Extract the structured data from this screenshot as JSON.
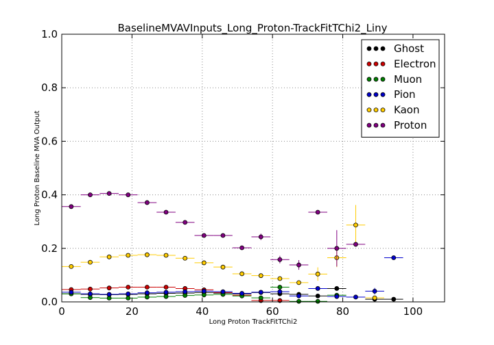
{
  "chart_data": {
    "type": "scatter",
    "title": "BaselineMVAVInputs_Long_Proton-TrackFitTChi2_Liny",
    "xlabel": "Long Proton TrackFitTChi2",
    "ylabel": "Long Proton Baseline MVA Output",
    "xlim": [
      0,
      109
    ],
    "ylim": [
      0,
      1.0
    ],
    "xticks": [
      0,
      20,
      40,
      60,
      80,
      100
    ],
    "xtick_labels": [
      "0",
      "20",
      "40",
      "60",
      "80",
      "100"
    ],
    "yticks": [
      0.0,
      0.2,
      0.4,
      0.6,
      0.8,
      1.0
    ],
    "ytick_labels": [
      "0.0",
      "0.2",
      "0.4",
      "0.6",
      "0.8",
      "1.0"
    ],
    "grid": true,
    "legend_position": "top-right",
    "x_halfwidth": 2.7,
    "series": [
      {
        "name": "Ghost",
        "color": "#000000",
        "points": [
          {
            "x": 2.7,
            "y": 0.03,
            "err": 0.003
          },
          {
            "x": 8.1,
            "y": 0.028,
            "err": 0.003
          },
          {
            "x": 13.5,
            "y": 0.027,
            "err": 0.003
          },
          {
            "x": 18.9,
            "y": 0.028,
            "err": 0.003
          },
          {
            "x": 24.3,
            "y": 0.03,
            "err": 0.003
          },
          {
            "x": 29.7,
            "y": 0.032,
            "err": 0.003
          },
          {
            "x": 35.1,
            "y": 0.033,
            "err": 0.003
          },
          {
            "x": 40.5,
            "y": 0.035,
            "err": 0.003
          },
          {
            "x": 45.9,
            "y": 0.033,
            "err": 0.003
          },
          {
            "x": 51.3,
            "y": 0.03,
            "err": 0.003
          },
          {
            "x": 56.7,
            "y": 0.035,
            "err": 0.004
          },
          {
            "x": 62.1,
            "y": 0.03,
            "err": 0.004
          },
          {
            "x": 67.5,
            "y": 0.028,
            "err": 0.004
          },
          {
            "x": 72.9,
            "y": 0.022,
            "err": 0.004
          },
          {
            "x": 78.3,
            "y": 0.05,
            "err": 0.005
          },
          {
            "x": 89.1,
            "y": 0.01,
            "err": 0.005
          },
          {
            "x": 94.5,
            "y": 0.01,
            "err": 0.004
          }
        ]
      },
      {
        "name": "Electron",
        "color": "#cc0000",
        "points": [
          {
            "x": 2.7,
            "y": 0.046,
            "err": 0.003
          },
          {
            "x": 8.1,
            "y": 0.048,
            "err": 0.003
          },
          {
            "x": 13.5,
            "y": 0.052,
            "err": 0.003
          },
          {
            "x": 18.9,
            "y": 0.055,
            "err": 0.003
          },
          {
            "x": 24.3,
            "y": 0.055,
            "err": 0.003
          },
          {
            "x": 29.7,
            "y": 0.055,
            "err": 0.003
          },
          {
            "x": 35.1,
            "y": 0.05,
            "err": 0.003
          },
          {
            "x": 40.5,
            "y": 0.045,
            "err": 0.003
          },
          {
            "x": 45.9,
            "y": 0.035,
            "err": 0.003
          },
          {
            "x": 51.3,
            "y": 0.025,
            "err": 0.003
          },
          {
            "x": 56.7,
            "y": 0.005,
            "err": 0.003
          },
          {
            "x": 62.1,
            "y": 0.005,
            "err": 0.003
          }
        ]
      },
      {
        "name": "Muon",
        "color": "#008000",
        "points": [
          {
            "x": 2.7,
            "y": 0.03,
            "err": 0.004
          },
          {
            "x": 8.1,
            "y": 0.016,
            "err": 0.004
          },
          {
            "x": 13.5,
            "y": 0.014,
            "err": 0.004
          },
          {
            "x": 18.9,
            "y": 0.014,
            "err": 0.004
          },
          {
            "x": 24.3,
            "y": 0.018,
            "err": 0.004
          },
          {
            "x": 29.7,
            "y": 0.02,
            "err": 0.004
          },
          {
            "x": 35.1,
            "y": 0.024,
            "err": 0.004
          },
          {
            "x": 40.5,
            "y": 0.026,
            "err": 0.004
          },
          {
            "x": 45.9,
            "y": 0.028,
            "err": 0.004
          },
          {
            "x": 51.3,
            "y": 0.022,
            "err": 0.004
          },
          {
            "x": 56.7,
            "y": 0.015,
            "err": 0.004
          },
          {
            "x": 62.1,
            "y": 0.055,
            "err": 0.006
          },
          {
            "x": 67.5,
            "y": 0.002,
            "err": 0.003
          },
          {
            "x": 72.9,
            "y": 0.002,
            "err": 0.003
          },
          {
            "x": 78.3,
            "y": 0.025,
            "err": 0.006
          }
        ]
      },
      {
        "name": "Pion",
        "color": "#0000cc",
        "points": [
          {
            "x": 2.7,
            "y": 0.036,
            "err": 0.003
          },
          {
            "x": 8.1,
            "y": 0.03,
            "err": 0.003
          },
          {
            "x": 13.5,
            "y": 0.028,
            "err": 0.003
          },
          {
            "x": 18.9,
            "y": 0.03,
            "err": 0.003
          },
          {
            "x": 24.3,
            "y": 0.034,
            "err": 0.003
          },
          {
            "x": 29.7,
            "y": 0.036,
            "err": 0.003
          },
          {
            "x": 35.1,
            "y": 0.038,
            "err": 0.003
          },
          {
            "x": 40.5,
            "y": 0.04,
            "err": 0.003
          },
          {
            "x": 45.9,
            "y": 0.038,
            "err": 0.003
          },
          {
            "x": 51.3,
            "y": 0.032,
            "err": 0.003
          },
          {
            "x": 56.7,
            "y": 0.036,
            "err": 0.004
          },
          {
            "x": 62.1,
            "y": 0.038,
            "err": 0.004
          },
          {
            "x": 67.5,
            "y": 0.022,
            "err": 0.004
          },
          {
            "x": 72.9,
            "y": 0.05,
            "err": 0.005
          },
          {
            "x": 78.3,
            "y": 0.02,
            "err": 0.005
          },
          {
            "x": 83.7,
            "y": 0.018,
            "err": 0.004
          },
          {
            "x": 89.1,
            "y": 0.04,
            "err": 0.012
          },
          {
            "x": 94.5,
            "y": 0.165,
            "err": 0.006
          }
        ]
      },
      {
        "name": "Kaon",
        "color": "#ffcc00",
        "points": [
          {
            "x": 2.7,
            "y": 0.132,
            "err": 0.004
          },
          {
            "x": 8.1,
            "y": 0.148,
            "err": 0.004
          },
          {
            "x": 13.5,
            "y": 0.168,
            "err": 0.004
          },
          {
            "x": 18.9,
            "y": 0.174,
            "err": 0.004
          },
          {
            "x": 24.3,
            "y": 0.176,
            "err": 0.004
          },
          {
            "x": 29.7,
            "y": 0.174,
            "err": 0.004
          },
          {
            "x": 35.1,
            "y": 0.163,
            "err": 0.004
          },
          {
            "x": 40.5,
            "y": 0.146,
            "err": 0.004
          },
          {
            "x": 45.9,
            "y": 0.13,
            "err": 0.004
          },
          {
            "x": 51.3,
            "y": 0.105,
            "err": 0.005
          },
          {
            "x": 56.7,
            "y": 0.098,
            "err": 0.005
          },
          {
            "x": 62.1,
            "y": 0.087,
            "err": 0.006
          },
          {
            "x": 67.5,
            "y": 0.072,
            "err": 0.007
          },
          {
            "x": 72.9,
            "y": 0.104,
            "err": 0.025
          },
          {
            "x": 78.3,
            "y": 0.165,
            "err": 0.035
          },
          {
            "x": 83.7,
            "y": 0.287,
            "err": 0.075
          },
          {
            "x": 89.1,
            "y": 0.015,
            "err": 0.005
          }
        ]
      },
      {
        "name": "Proton",
        "color": "#800080",
        "points": [
          {
            "x": 2.7,
            "y": 0.356,
            "err": 0.005
          },
          {
            "x": 8.1,
            "y": 0.4,
            "err": 0.004
          },
          {
            "x": 13.5,
            "y": 0.405,
            "err": 0.004
          },
          {
            "x": 18.9,
            "y": 0.4,
            "err": 0.004
          },
          {
            "x": 24.3,
            "y": 0.371,
            "err": 0.004
          },
          {
            "x": 29.7,
            "y": 0.335,
            "err": 0.004
          },
          {
            "x": 35.1,
            "y": 0.297,
            "err": 0.005
          },
          {
            "x": 40.5,
            "y": 0.248,
            "err": 0.005
          },
          {
            "x": 45.9,
            "y": 0.248,
            "err": 0.005
          },
          {
            "x": 51.3,
            "y": 0.202,
            "err": 0.006
          },
          {
            "x": 56.7,
            "y": 0.243,
            "err": 0.012
          },
          {
            "x": 62.1,
            "y": 0.158,
            "err": 0.014
          },
          {
            "x": 67.5,
            "y": 0.138,
            "err": 0.018
          },
          {
            "x": 72.9,
            "y": 0.335,
            "err": 0.006
          },
          {
            "x": 78.3,
            "y": 0.2,
            "err": 0.068
          },
          {
            "x": 83.7,
            "y": 0.215,
            "err": 0.008
          }
        ]
      }
    ]
  }
}
